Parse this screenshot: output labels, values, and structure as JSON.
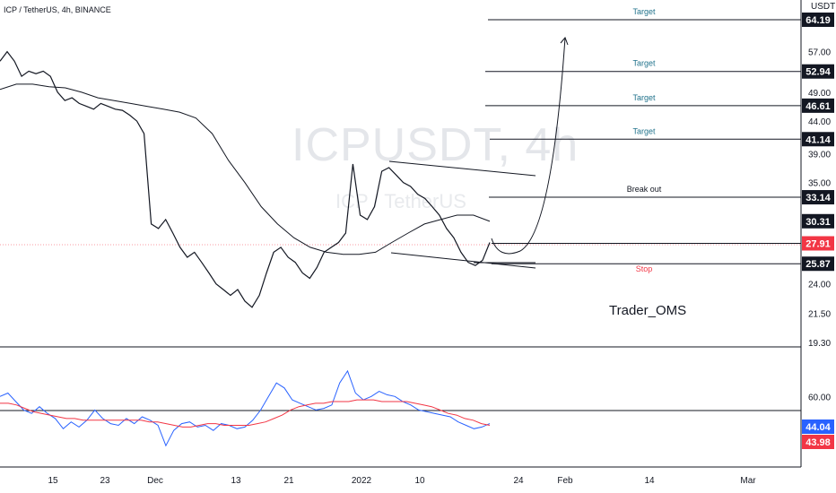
{
  "header": {
    "symbol_line": "ICP / TetherUS, 4h, BINANCE",
    "currency": "USDT"
  },
  "watermark": {
    "main": "ICPUSDT, 4h",
    "sub": "ICP / TetherUS"
  },
  "author": "Trader_OMS",
  "colors": {
    "price_line": "#131722",
    "ma": "#131722",
    "rsi": "#2962ff",
    "rsi_ma": "#f23645",
    "target_text": "#22738c",
    "stop_text": "#f23645",
    "label_bg": "#131722",
    "rsi_label_blue": "#2962ff",
    "rsi_label_red": "#f23645"
  },
  "chart_data": {
    "type": "line",
    "title": "ICPUSDT, 4h",
    "price_axis": {
      "ticks": [
        "57.00",
        "49.00",
        "44.00",
        "39.00",
        "35.00",
        "24.00",
        "21.50",
        "19.30"
      ],
      "tick_values": [
        57.0,
        49.0,
        44.0,
        39.0,
        35.0,
        24.0,
        21.5,
        19.3
      ]
    },
    "time_axis": {
      "ticks": [
        "15",
        "23",
        "Dec",
        "13",
        "21",
        "2022",
        "10",
        "24",
        "Feb",
        "14",
        "Mar"
      ]
    },
    "price_series": {
      "name": "ICPUSDT price",
      "values": [
        55.0,
        57.0,
        55.0,
        52.0,
        53.0,
        52.5,
        53.0,
        52.0,
        49.0,
        47.5,
        48.0,
        47.0,
        46.5,
        46.0,
        47.0,
        46.5,
        46.0,
        45.8,
        45.0,
        44.0,
        42.0,
        30.0,
        29.5,
        30.5,
        29.0,
        27.5,
        26.5,
        27.0,
        26.0,
        25.0,
        24.0,
        23.5,
        23.0,
        23.5,
        22.5,
        22.0,
        23.0,
        25.0,
        27.0,
        27.5,
        26.5,
        26.0,
        25.0,
        24.5,
        25.5,
        27.0,
        27.5,
        28.0,
        29.0,
        37.5,
        31.0,
        30.5,
        32.0,
        36.5,
        37.0,
        36.0,
        35.0,
        34.5,
        33.5,
        33.0,
        32.0,
        31.0,
        29.5,
        28.5,
        27.0,
        26.0,
        25.7,
        26.2,
        28.0
      ]
    },
    "moving_average": {
      "name": "MA",
      "values": [
        49.5,
        50.5,
        50.5,
        50.0,
        49.8,
        49.0,
        48.0,
        47.5,
        47.0,
        46.5,
        46.0,
        45.5,
        44.5,
        42.0,
        38.0,
        35.0,
        32.0,
        30.0,
        28.5,
        27.5,
        27.0,
        26.8,
        26.8,
        27.0,
        28.0,
        29.0,
        30.0,
        30.5,
        31.0,
        31.0,
        30.3
      ]
    },
    "levels": [
      {
        "value": 64.19,
        "label": "64.19",
        "annotation": "Target"
      },
      {
        "value": 52.94,
        "label": "52.94",
        "annotation": "Target"
      },
      {
        "value": 46.61,
        "label": "46.61",
        "annotation": "Target"
      },
      {
        "value": 41.14,
        "label": "41.14",
        "annotation": "Target"
      },
      {
        "value": 33.14,
        "label": "33.14",
        "annotation": "Break out"
      },
      {
        "value": 30.31,
        "label": "30.31",
        "annotation": ""
      },
      {
        "value": 27.91,
        "label": "27.91",
        "annotation": ""
      },
      {
        "value": 25.87,
        "label": "25.87",
        "annotation": "Stop"
      }
    ],
    "rsi": {
      "axis_ticks": [
        "60.00"
      ],
      "reference_level": 50,
      "values": [
        60,
        62,
        57,
        52,
        50,
        54,
        50,
        47,
        41,
        45,
        42,
        46,
        52,
        47,
        44,
        43,
        47,
        44,
        48,
        46,
        43,
        31,
        40,
        44,
        45,
        42,
        43,
        40,
        44,
        43,
        41,
        42,
        46,
        52,
        60,
        68,
        65,
        58,
        56,
        54,
        52,
        53,
        55,
        68,
        75,
        62,
        58,
        60,
        63,
        61,
        60,
        57,
        55,
        52,
        51,
        50,
        49,
        48,
        45,
        43,
        41,
        42,
        44
      ],
      "ma_values": [
        56,
        56,
        55,
        53,
        51,
        50,
        49,
        48,
        47,
        47,
        46,
        46,
        46,
        46,
        46,
        46,
        46,
        46,
        45,
        45,
        44,
        43,
        42,
        42,
        43,
        44,
        44,
        43,
        43,
        43,
        43,
        44,
        45,
        47,
        49,
        52,
        54,
        55,
        56,
        56,
        57,
        57,
        57,
        58,
        58,
        58,
        57,
        57,
        57,
        57,
        56,
        55,
        54,
        52,
        50,
        49,
        47,
        46,
        44,
        43
      ],
      "current_label": "44.04",
      "ma_label": "43.98"
    }
  }
}
